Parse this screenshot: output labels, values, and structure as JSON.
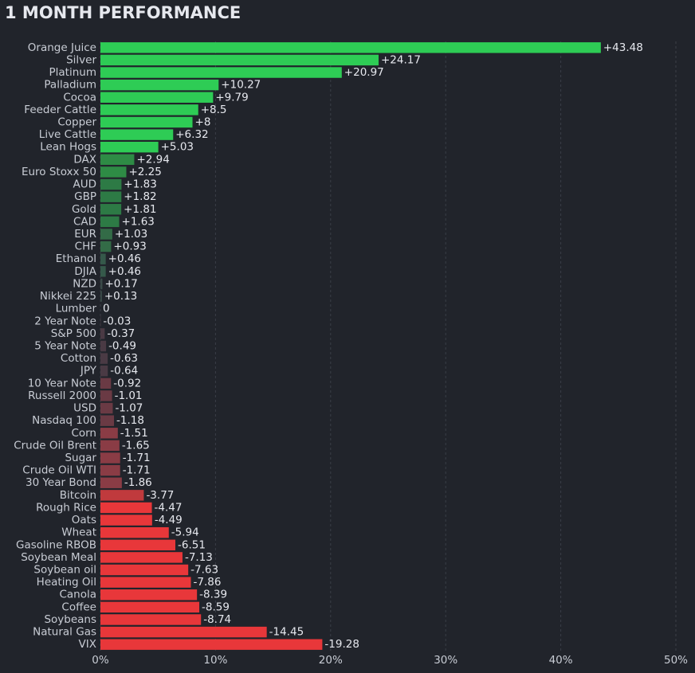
{
  "chart_data": {
    "type": "bar",
    "title": "1 MONTH PERFORMANCE",
    "categories": [
      "Orange Juice",
      "Silver",
      "Platinum",
      "Palladium",
      "Cocoa",
      "Feeder Cattle",
      "Copper",
      "Live Cattle",
      "Lean Hogs",
      "DAX",
      "Euro Stoxx 50",
      "AUD",
      "GBP",
      "Gold",
      "CAD",
      "EUR",
      "CHF",
      "Ethanol",
      "DJIA",
      "NZD",
      "Nikkei 225",
      "Lumber",
      "2 Year Note",
      "S&P 500",
      "5 Year Note",
      "Cotton",
      "JPY",
      "10 Year Note",
      "Russell 2000",
      "USD",
      "Nasdaq 100",
      "Corn",
      "Crude Oil Brent",
      "Sugar",
      "Crude Oil WTI",
      "30 Year Bond",
      "Bitcoin",
      "Rough Rice",
      "Oats",
      "Wheat",
      "Gasoline RBOB",
      "Soybean Meal",
      "Soybean oil",
      "Heating Oil",
      "Canola",
      "Coffee",
      "Soybeans",
      "Natural Gas",
      "VIX"
    ],
    "values": [
      43.48,
      24.17,
      20.97,
      10.27,
      9.79,
      8.5,
      8,
      6.32,
      5.03,
      2.94,
      2.25,
      1.83,
      1.82,
      1.81,
      1.63,
      1.03,
      0.93,
      0.46,
      0.46,
      0.17,
      0.13,
      0,
      -0.03,
      -0.37,
      -0.49,
      -0.63,
      -0.64,
      -0.92,
      -1.01,
      -1.07,
      -1.18,
      -1.51,
      -1.65,
      -1.71,
      -1.71,
      -1.86,
      -3.77,
      -4.47,
      -4.49,
      -5.94,
      -6.51,
      -7.13,
      -7.63,
      -7.86,
      -8.39,
      -8.59,
      -8.74,
      -14.45,
      -19.28
    ],
    "value_labels": [
      "+43.48",
      "+24.17",
      "+20.97",
      "+10.27",
      "+9.79",
      "+8.5",
      "+8",
      "+6.32",
      "+5.03",
      "+2.94",
      "+2.25",
      "+1.83",
      "+1.82",
      "+1.81",
      "+1.63",
      "+1.03",
      "+0.93",
      "+0.46",
      "+0.46",
      "+0.17",
      "+0.13",
      "0",
      "-0.03",
      "-0.37",
      "-0.49",
      "-0.63",
      "-0.64",
      "-0.92",
      "-1.01",
      "-1.07",
      "-1.18",
      "-1.51",
      "-1.65",
      "-1.71",
      "-1.71",
      "-1.86",
      "-3.77",
      "-4.47",
      "-4.49",
      "-5.94",
      "-6.51",
      "-7.13",
      "-7.63",
      "-7.86",
      "-8.39",
      "-8.59",
      "-8.74",
      "-14.45",
      "-19.28"
    ],
    "colors": [
      "#2ecc55",
      "#2ecc55",
      "#2ecc55",
      "#2ecc55",
      "#2ecc55",
      "#2ecc55",
      "#2ecc55",
      "#2ecc55",
      "#2ecc55",
      "#2e8b45",
      "#2e8b45",
      "#2d7a45",
      "#2d7a45",
      "#2d7a45",
      "#2d7a45",
      "#336b47",
      "#336b47",
      "#35594a",
      "#35594a",
      "#3a4a48",
      "#3a4a48",
      "#3a4a48",
      "#4a3a44",
      "#4a3a44",
      "#4a3a44",
      "#4a3a44",
      "#4a3a44",
      "#6a3a44",
      "#6a3a44",
      "#6a3a44",
      "#6a3a44",
      "#8a3c45",
      "#8a3c45",
      "#8a3c45",
      "#8a3c45",
      "#8a3c45",
      "#c03a3d",
      "#e8373a",
      "#e8373a",
      "#e8373a",
      "#e8373a",
      "#e8373a",
      "#e8373a",
      "#e8373a",
      "#e8373a",
      "#e8373a",
      "#e8373a",
      "#e8373a",
      "#e8373a"
    ],
    "xlim": [
      0,
      50
    ],
    "xticks": [
      {
        "value": 0,
        "label": "0%"
      },
      {
        "value": 10,
        "label": "10%"
      },
      {
        "value": 20,
        "label": "20%"
      },
      {
        "value": 30,
        "label": "30%"
      },
      {
        "value": 40,
        "label": "40%"
      },
      {
        "value": 50,
        "label": "50%"
      }
    ],
    "grid": true
  }
}
